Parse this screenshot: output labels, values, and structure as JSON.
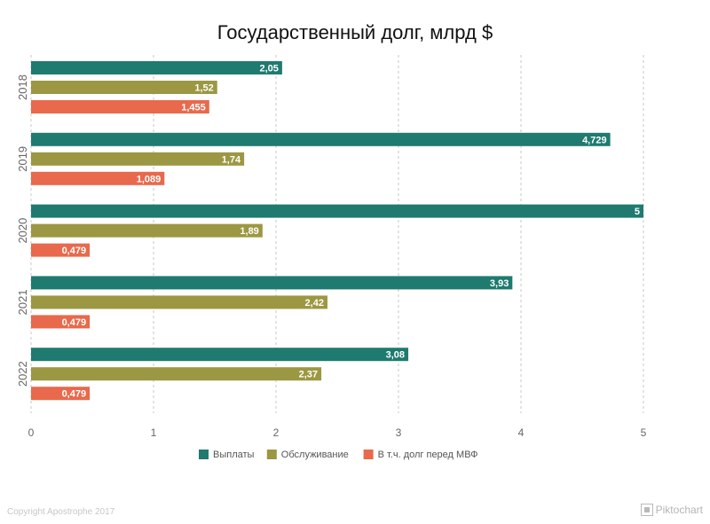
{
  "chart_data": {
    "type": "bar",
    "orientation": "horizontal",
    "title": "Государственный долг, млрд $",
    "categories": [
      "2018",
      "2019",
      "2020",
      "2021",
      "2022"
    ],
    "series": [
      {
        "name": "Выплаты",
        "color": "#1f7a6f",
        "values": [
          2.05,
          4.729,
          5,
          3.93,
          3.08
        ],
        "labels": [
          "2,05",
          "4,729",
          "5",
          "3,93",
          "3,08"
        ]
      },
      {
        "name": "Обслуживание",
        "color": "#9c9742",
        "values": [
          1.52,
          1.74,
          1.89,
          2.42,
          2.37
        ],
        "labels": [
          "1,52",
          "1,74",
          "1,89",
          "2,42",
          "2,37"
        ]
      },
      {
        "name": "В т.ч. долг перед МВФ",
        "color": "#e8694c",
        "values": [
          1.455,
          1.089,
          0.479,
          0.479,
          0.479
        ],
        "labels": [
          "1,455",
          "1,089",
          "0,479",
          "0,479",
          "0,479"
        ]
      }
    ],
    "xlim": [
      0,
      5
    ],
    "xticks": [
      "0",
      "1",
      "2",
      "3",
      "4",
      "5"
    ],
    "grid": true,
    "legend_position": "bottom"
  },
  "footer": {
    "copyright": "Copyright Apostrophe 2017",
    "brand": "Piktochart"
  }
}
